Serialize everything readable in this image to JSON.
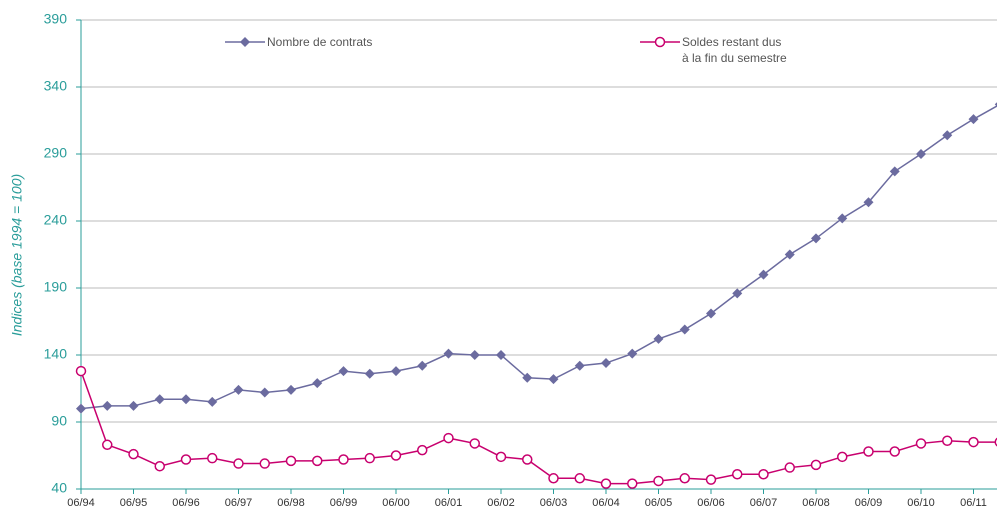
{
  "chart_data": {
    "type": "line",
    "y_label": "Indices (base 1994 = 100)",
    "categories": [
      "06/94",
      null,
      "06/95",
      null,
      "06/96",
      null,
      "06/97",
      null,
      "06/98",
      null,
      "06/99",
      null,
      "06/00",
      null,
      "06/01",
      null,
      "06/02",
      null,
      "06/03",
      null,
      "06/04",
      null,
      "06/05",
      null,
      "06/06",
      null,
      "06/07",
      null,
      "06/08",
      null,
      "06/09",
      null,
      "06/10",
      null,
      "06/11",
      null
    ],
    "series": [
      {
        "name": "Nombre de contrats",
        "color": "#6b6b9f",
        "marker": "diamond",
        "values": [
          100,
          102,
          102,
          107,
          107,
          105,
          114,
          112,
          114,
          119,
          128,
          126,
          128,
          132,
          141,
          140,
          140,
          123,
          122,
          132,
          134,
          141,
          152,
          159,
          171,
          186,
          200,
          215,
          227,
          242,
          254,
          277,
          290,
          304,
          316,
          327
        ]
      },
      {
        "name": "Soldes restant dus\nà la fin du semestre",
        "color": "#c8006e",
        "marker": "circle",
        "values": [
          128,
          73,
          66,
          57,
          62,
          63,
          59,
          59,
          61,
          61,
          62,
          63,
          65,
          69,
          78,
          74,
          64,
          62,
          48,
          48,
          44,
          44,
          46,
          48,
          47,
          51,
          51,
          56,
          58,
          64,
          68,
          68,
          74,
          76,
          75,
          75
        ]
      }
    ],
    "ylim": [
      40,
      390
    ],
    "yticks": [
      40,
      90,
      140,
      190,
      240,
      290,
      340,
      390
    ],
    "grid": true
  }
}
